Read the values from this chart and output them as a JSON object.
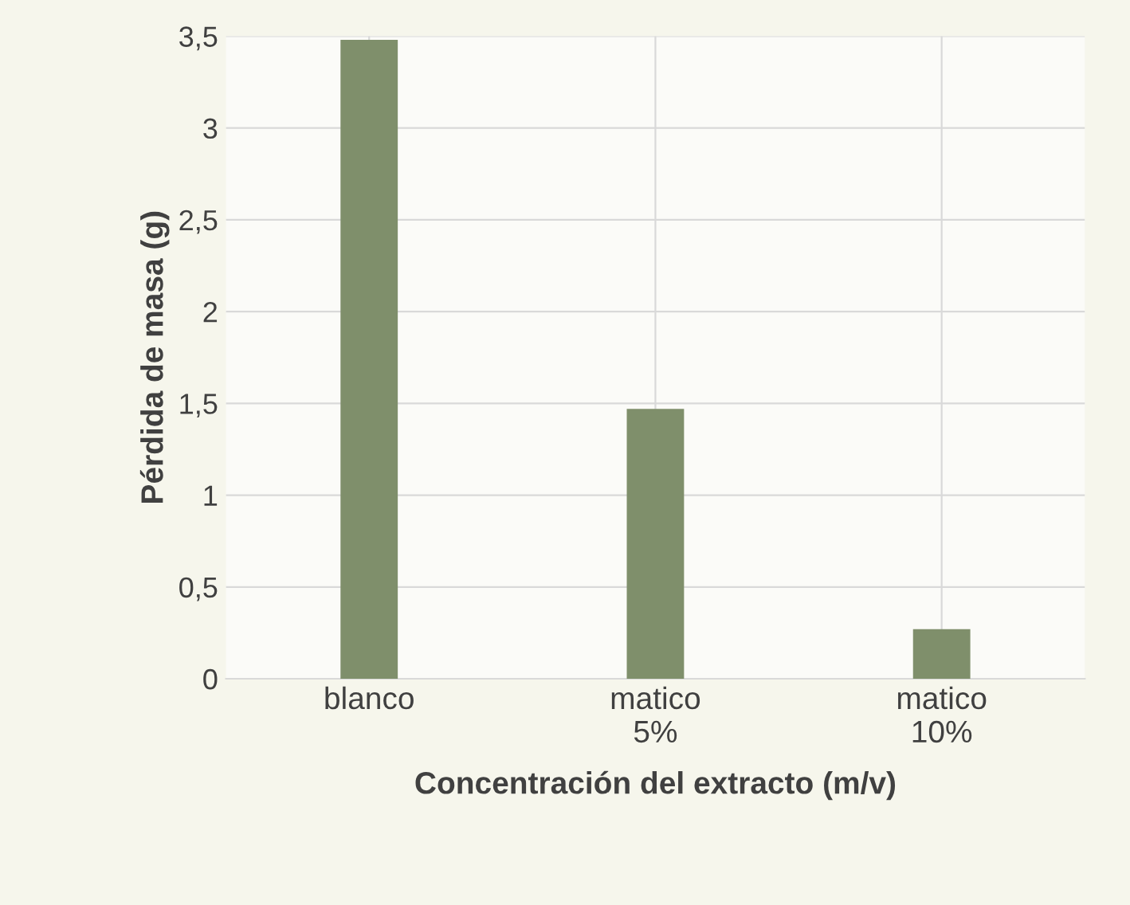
{
  "chart_data": {
    "type": "bar",
    "xlabel": "Concentración del extracto (m/v)",
    "ylabel": "Pérdida de masa (g)",
    "categories": [
      "blanco",
      "matico\n5%",
      "matico\n10%"
    ],
    "values": [
      3.48,
      1.47,
      0.27
    ],
    "color": "#7f8f6b",
    "ylim": [
      0,
      3.5
    ],
    "yticks": [
      {
        "value": 0,
        "label": "0"
      },
      {
        "value": 0.5,
        "label": "0,5"
      },
      {
        "value": 1,
        "label": "1"
      },
      {
        "value": 1.5,
        "label": "1,5"
      },
      {
        "value": 2,
        "label": "2"
      },
      {
        "value": 2.5,
        "label": "2,5"
      },
      {
        "value": 3,
        "label": "3"
      },
      {
        "value": 3.5,
        "label": "3,5"
      }
    ],
    "grid": true
  }
}
